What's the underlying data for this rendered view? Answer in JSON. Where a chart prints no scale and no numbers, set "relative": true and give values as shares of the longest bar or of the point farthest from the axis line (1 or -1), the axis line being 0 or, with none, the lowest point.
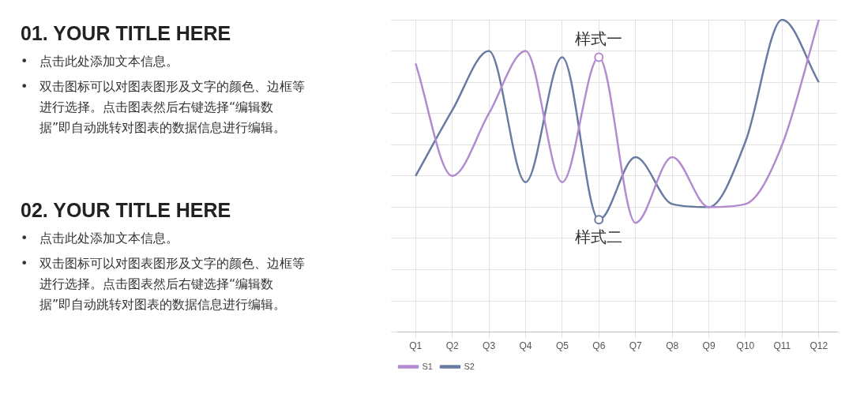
{
  "chart_data": [
    {
      "type": "other",
      "title": "01. YOUR TITLE HERE",
      "annotations": [
        "•\t点击此处添加文本信息。",
        "•\t双击图标可以对图表图形及文字的颜色、边框等进行选择。点击图表然后右键选择“编辑数据”即自动跳转对图表的数据信息进行编辑。"
      ]
    },
    {
      "type": "other",
      "title": "02. YOUR TITLE HERE",
      "annotations": [
        "•\t点击此处添加文本信息。",
        "•\t双击图标可以对图表图形及文字的颜色、边框等进行选择。点击图表然后右键选择“编辑数据”即自动跳转对图表的数据信息进行编辑。"
      ]
    },
    {
      "type": "line",
      "relative": true,
      "categories": [
        "Q1",
        "Q2",
        "Q3",
        "Q4",
        "Q5",
        "Q6",
        "Q7",
        "Q8",
        "Q9",
        "Q10",
        "Q11",
        "Q12"
      ],
      "series": [
        {
          "name": "S1",
          "color": "#b48bd0",
          "values": [
            0.86,
            0.5,
            0.7,
            0.9,
            0.48,
            0.88,
            0.35,
            0.56,
            0.4,
            0.41,
            0.6,
            1.0
          ]
        },
        {
          "name": "S2",
          "color": "#6a7ba2",
          "values": [
            0.5,
            0.71,
            0.9,
            0.48,
            0.88,
            0.36,
            0.56,
            0.41,
            0.4,
            0.61,
            1.0,
            0.8
          ]
        }
      ],
      "annotations": [
        {
          "text": "样式一",
          "x": "Q6",
          "y": 0.88
        },
        {
          "text": "样式二",
          "x": "Q6",
          "y": 0.36
        }
      ],
      "grid": true,
      "legend": "bottom left",
      "marker": "none",
      "line_style": "solid"
    }
  ]
}
